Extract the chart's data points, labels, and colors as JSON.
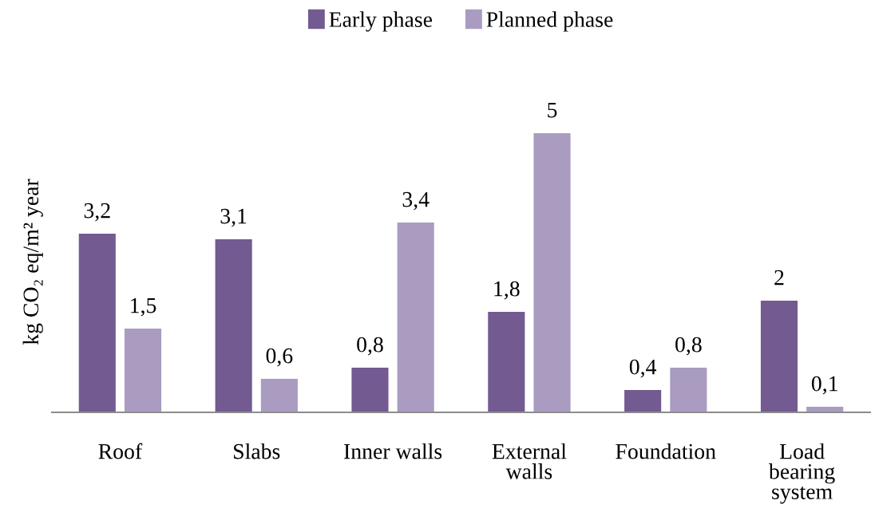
{
  "chart_data": {
    "type": "bar",
    "ylabel": "kg CO₂ eq/m² year",
    "categories": [
      "Roof",
      "Slabs",
      "Inner walls",
      "External\nwalls",
      "Foundation",
      "Load\nbearing\nsystem"
    ],
    "series": [
      {
        "name": "Early phase",
        "color": "#735a91",
        "values": [
          3.2,
          3.1,
          0.8,
          1.8,
          0.4,
          2
        ],
        "value_labels": [
          "3,2",
          "3,1",
          "0,8",
          "1,8",
          "0,4",
          "2"
        ]
      },
      {
        "name": "Planned phase",
        "color": "#a99cc0",
        "values": [
          1.5,
          0.6,
          3.4,
          5,
          0.8,
          0.1
        ],
        "value_labels": [
          "1,5",
          "0,6",
          "3,4",
          "5",
          "0,8",
          "0,1"
        ]
      }
    ],
    "legend": "top",
    "grid": false,
    "tick_labels": "x"
  }
}
